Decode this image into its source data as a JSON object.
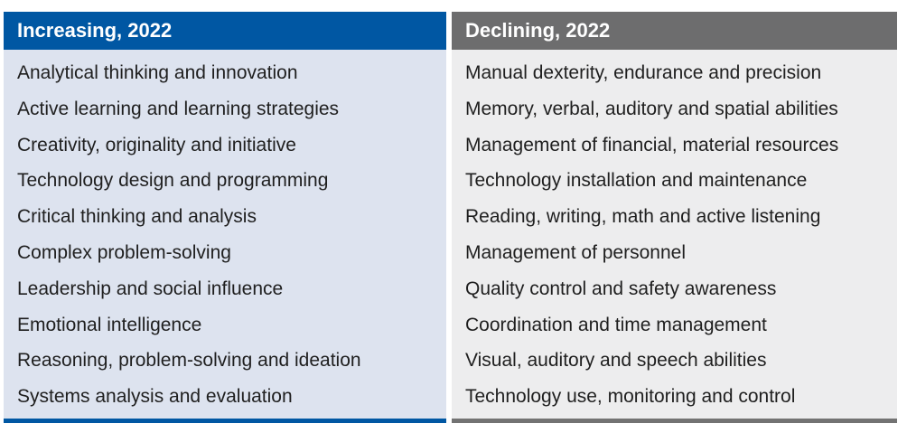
{
  "increasing": {
    "title": "Increasing, 2022",
    "color": "#0057a3",
    "items": [
      "Analytical thinking and innovation",
      "Active learning and learning strategies",
      "Creativity, originality and initiative",
      "Technology design and programming",
      "Critical thinking and analysis",
      "Complex problem-solving",
      "Leadership and social influence",
      "Emotional intelligence",
      "Reasoning, problem-solving and ideation",
      "Systems analysis and evaluation"
    ]
  },
  "declining": {
    "title": "Declining, 2022",
    "color": "#6d6d6e",
    "items": [
      "Manual dexterity, endurance and precision",
      "Memory, verbal, auditory and spatial abilities",
      "Management of financial, material resources",
      "Technology installation and maintenance",
      "Reading, writing, math and active listening",
      "Management of personnel",
      "Quality control and safety awareness",
      "Coordination and time management",
      "Visual, auditory and speech abilities",
      "Technology use, monitoring and control"
    ]
  }
}
